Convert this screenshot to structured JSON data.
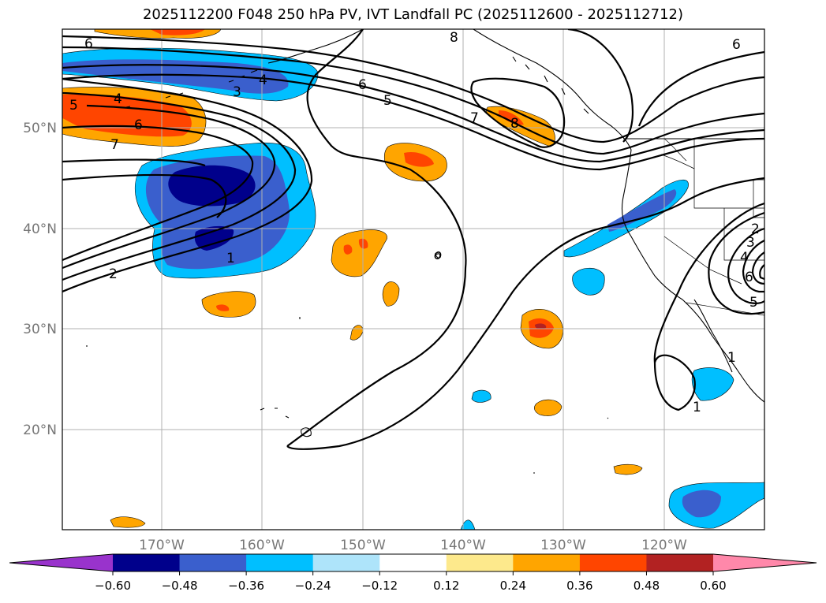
{
  "title": "2025112200 F048 250 hPa PV, IVT Landfall PC (2025112600 - 2025112712)",
  "map": {
    "lat_labels": [
      "50°N",
      "40°N",
      "30°N",
      "20°N"
    ],
    "lon_labels": [
      "170°W",
      "160°W",
      "150°W",
      "140°W",
      "130°W",
      "120°W"
    ],
    "contour_labels": [
      "6",
      "4",
      "5",
      "3",
      "6",
      "7",
      "2",
      "1",
      "4",
      "6",
      "5",
      "7",
      "8",
      "8",
      "6",
      "2",
      "3",
      "4",
      "6",
      "5",
      "1",
      "1"
    ],
    "colors": {
      "neg_060": "#9933cc",
      "neg_048": "#00008b",
      "neg_036": "#3a5fcd",
      "neg_024": "#00bfff",
      "neg_012": "#aee4fa",
      "neutral": "#ffffff",
      "pos_012": "#fde98c",
      "pos_024": "#ffa500",
      "pos_036": "#ff4500",
      "pos_048": "#b22222",
      "pos_060": "#ff88aa"
    }
  },
  "colorbar": {
    "ticks": [
      "−0.60",
      "−0.48",
      "−0.36",
      "−0.24",
      "−0.12",
      "0.12",
      "0.24",
      "0.36",
      "0.48",
      "0.60"
    ],
    "colors": [
      "#9933cc",
      "#00008b",
      "#3a5fcd",
      "#00bfff",
      "#aee4fa",
      "#ffffff",
      "#fde98c",
      "#ffa500",
      "#ff4500",
      "#b22222",
      "#ff88aa"
    ]
  }
}
